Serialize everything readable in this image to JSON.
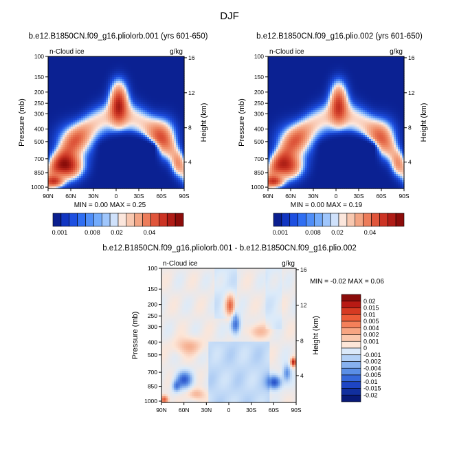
{
  "figure": {
    "season": "DJF"
  },
  "chart_data": [
    {
      "type": "heatmap",
      "title": "b.e12.B1850CN.f09_g16.pliolorb.001 (yrs 601-650)",
      "variable_label": "n-Cloud ice",
      "units": "g/kg",
      "ylabel": "Pressure (mb)",
      "y2label": "Height (km)",
      "x_ticks": [
        "90N",
        "60N",
        "30N",
        "0",
        "30S",
        "60S",
        "90S"
      ],
      "y_ticks": [
        "100",
        "150",
        "200",
        "250",
        "300",
        "400",
        "500",
        "700",
        "850",
        "1000"
      ],
      "y2_ticks": [
        "16",
        "12",
        "8",
        "4"
      ],
      "stats": "MIN =   0.00   MAX =   0.25",
      "colorbar_labels": [
        "0.001",
        "0.008",
        "0.02",
        "0.04"
      ],
      "colorbar_colors": [
        "#0b1f8f",
        "#1236c2",
        "#1d4fe0",
        "#2f6ef2",
        "#4f8ef8",
        "#73abfb",
        "#9fc6fc",
        "#cfe1fb",
        "#fbe6dc",
        "#f8c8b0",
        "#f3a584",
        "#ec7c5a",
        "#e0553b",
        "#cc3324",
        "#b01c16",
        "#8c0c0a"
      ]
    },
    {
      "type": "heatmap",
      "title": "b.e12.B1850CN.f09_g16.plio.002 (yrs 601-650)",
      "variable_label": "n-Cloud ice",
      "units": "g/kg",
      "ylabel": "Pressure (mb)",
      "y2label": "Height (km)",
      "x_ticks": [
        "90N",
        "60N",
        "30N",
        "0",
        "30S",
        "60S",
        "90S"
      ],
      "y_ticks": [
        "100",
        "150",
        "200",
        "250",
        "300",
        "400",
        "500",
        "700",
        "850",
        "1000"
      ],
      "y2_ticks": [
        "16",
        "12",
        "8",
        "4"
      ],
      "stats": "MIN =   0.00   MAX =   0.19",
      "colorbar_labels": [
        "0.001",
        "0.008",
        "0.02",
        "0.04"
      ],
      "colorbar_colors": [
        "#0b1f8f",
        "#1236c2",
        "#1d4fe0",
        "#2f6ef2",
        "#4f8ef8",
        "#73abfb",
        "#9fc6fc",
        "#cfe1fb",
        "#fbe6dc",
        "#f8c8b0",
        "#f3a584",
        "#ec7c5a",
        "#e0553b",
        "#cc3324",
        "#b01c16",
        "#8c0c0a"
      ]
    },
    {
      "type": "heatmap",
      "title": "b.e12.B1850CN.f09_g16.pliolorb.001 - b.e12.B1850CN.f09_g16.plio.002",
      "variable_label": "n-Cloud ice",
      "units": "g/kg",
      "ylabel": "Pressure (mb)",
      "y2label": "Height (km)",
      "x_ticks": [
        "90N",
        "60N",
        "30N",
        "0",
        "30S",
        "60S",
        "90S"
      ],
      "y_ticks": [
        "100",
        "150",
        "200",
        "250",
        "300",
        "400",
        "500",
        "700",
        "850",
        "1000"
      ],
      "y2_ticks": [
        "16",
        "12",
        "8",
        "4"
      ],
      "stats": "MIN =   -0.02   MAX =   0.06",
      "colorbar_labels": [
        "0.02",
        "0.015",
        "0.01",
        "0.005",
        "0.004",
        "0.002",
        "0.001",
        "0",
        "-0.001",
        "-0.002",
        "-0.004",
        "-0.005",
        "-0.01",
        "-0.015",
        "-0.02"
      ],
      "colorbar_colors": [
        "#8a0c0a",
        "#b81a14",
        "#d63a22",
        "#ec5c38",
        "#f4805a",
        "#f8a582",
        "#fbc8ad",
        "#fde6d8",
        "#dbe9fa",
        "#b3d0f6",
        "#87b1ef",
        "#5a8ee6",
        "#3668da",
        "#1e45c4",
        "#112f9e",
        "#081a78"
      ]
    }
  ]
}
